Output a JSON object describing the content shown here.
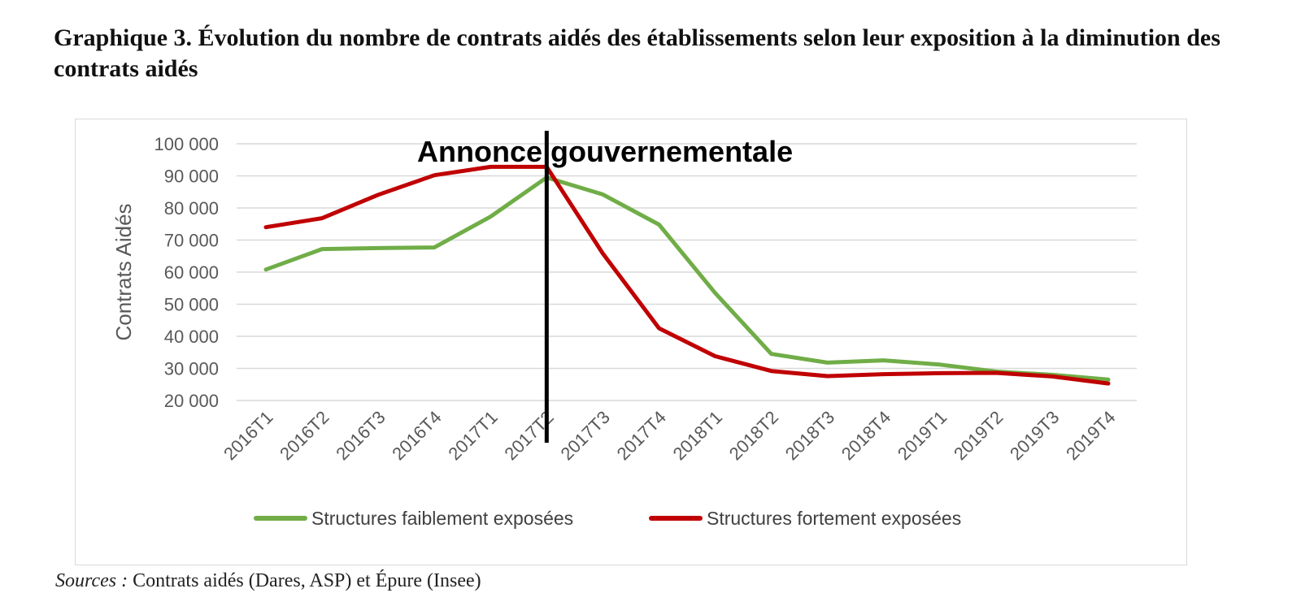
{
  "page": {
    "title": "Graphique 3. Évolution du nombre de contrats aidés des établissements selon leur exposition à la diminution des contrats aidés",
    "sources_label": "Sources :",
    "sources_text": " Contrats aidés (Dares, ASP) et Épure (Insee)"
  },
  "chart_data": {
    "type": "line",
    "title": "",
    "xlabel": "",
    "ylabel": "Contrats Aidés",
    "categories": [
      "2016T1",
      "2016T2",
      "2016T3",
      "2016T4",
      "2017T1",
      "2017T2",
      "2017T3",
      "2017T4",
      "2018T1",
      "2018T2",
      "2018T3",
      "2018T4",
      "2019T1",
      "2019T2",
      "2019T3",
      "2019T4"
    ],
    "ylim": [
      20000,
      100000
    ],
    "yticks": [
      20000,
      30000,
      40000,
      50000,
      60000,
      70000,
      80000,
      90000,
      100000
    ],
    "ytick_labels": [
      "20 000",
      "30 000",
      "40 000",
      "50 000",
      "60 000",
      "70 000",
      "80 000",
      "90 000",
      "100 000"
    ],
    "grid": true,
    "legend_position": "bottom",
    "series": [
      {
        "name": "Structures faiblement exposées",
        "color": "#70ad47",
        "values": [
          60800,
          67200,
          67500,
          67700,
          77300,
          89500,
          84200,
          74800,
          53500,
          34500,
          31800,
          32500,
          31200,
          29000,
          28000,
          26500
        ]
      },
      {
        "name": "Structures fortement exposées",
        "color": "#c00000",
        "values": [
          74000,
          76800,
          84100,
          90200,
          92800,
          92800,
          65800,
          42500,
          33800,
          29200,
          27600,
          28200,
          28500,
          28600,
          27500,
          25300
        ]
      }
    ],
    "annotation": {
      "text": "Annonce gouvernementale",
      "at_category": "2017T2"
    }
  }
}
